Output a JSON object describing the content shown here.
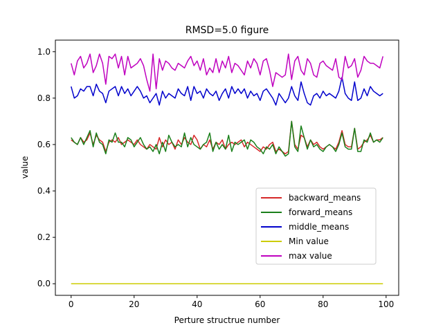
{
  "chart_data": {
    "type": "line",
    "title": "RMSD=5.0 figure",
    "xlabel": "Perture structrue number",
    "ylabel": "value",
    "xlim": [
      -5,
      104
    ],
    "ylim": [
      -0.05,
      1.05
    ],
    "xticks": [
      0,
      20,
      40,
      60,
      80,
      100
    ],
    "yticks": [
      0.0,
      0.2,
      0.4,
      0.6,
      0.8,
      1.0
    ],
    "xtick_labels": [
      "0",
      "20",
      "40",
      "60",
      "80",
      "100"
    ],
    "ytick_labels": [
      "0.0",
      "0.2",
      "0.4",
      "0.6",
      "0.8",
      "1.0"
    ],
    "grid": false,
    "legend_position": "lower-right",
    "x": [
      0,
      1,
      2,
      3,
      4,
      5,
      6,
      7,
      8,
      9,
      10,
      11,
      12,
      13,
      14,
      15,
      16,
      17,
      18,
      19,
      20,
      21,
      22,
      23,
      24,
      25,
      26,
      27,
      28,
      29,
      30,
      31,
      32,
      33,
      34,
      35,
      36,
      37,
      38,
      39,
      40,
      41,
      42,
      43,
      44,
      45,
      46,
      47,
      48,
      49,
      50,
      51,
      52,
      53,
      54,
      55,
      56,
      57,
      58,
      59,
      60,
      61,
      62,
      63,
      64,
      65,
      66,
      67,
      68,
      69,
      70,
      71,
      72,
      73,
      74,
      75,
      76,
      77,
      78,
      79,
      80,
      81,
      82,
      83,
      84,
      85,
      86,
      87,
      88,
      89,
      90,
      91,
      92,
      93,
      94,
      95,
      96,
      97,
      98,
      99
    ],
    "series": [
      {
        "name": "backward_means",
        "color": "#d62728",
        "values": [
          0.62,
          0.61,
          0.6,
          0.63,
          0.61,
          0.62,
          0.65,
          0.6,
          0.64,
          0.62,
          0.61,
          0.57,
          0.61,
          0.62,
          0.61,
          0.63,
          0.6,
          0.61,
          0.62,
          0.61,
          0.6,
          0.62,
          0.6,
          0.59,
          0.58,
          0.6,
          0.59,
          0.58,
          0.63,
          0.59,
          0.62,
          0.6,
          0.61,
          0.58,
          0.62,
          0.6,
          0.63,
          0.61,
          0.6,
          0.64,
          0.62,
          0.58,
          0.6,
          0.59,
          0.62,
          0.58,
          0.61,
          0.6,
          0.62,
          0.58,
          0.6,
          0.61,
          0.6,
          0.61,
          0.62,
          0.59,
          0.61,
          0.6,
          0.59,
          0.58,
          0.57,
          0.59,
          0.58,
          0.6,
          0.61,
          0.57,
          0.58,
          0.57,
          0.56,
          0.57,
          0.7,
          0.6,
          0.58,
          0.64,
          0.63,
          0.59,
          0.62,
          0.6,
          0.61,
          0.59,
          0.58,
          0.59,
          0.6,
          0.59,
          0.58,
          0.61,
          0.66,
          0.6,
          0.59,
          0.59,
          0.67,
          0.58,
          0.59,
          0.61,
          0.62,
          0.64,
          0.61,
          0.62,
          0.62,
          0.63
        ]
      },
      {
        "name": "forward_means",
        "color": "#1a7f1a",
        "values": [
          0.63,
          0.61,
          0.6,
          0.63,
          0.6,
          0.63,
          0.66,
          0.59,
          0.65,
          0.61,
          0.6,
          0.56,
          0.62,
          0.61,
          0.65,
          0.61,
          0.61,
          0.59,
          0.63,
          0.62,
          0.59,
          0.61,
          0.63,
          0.6,
          0.58,
          0.59,
          0.57,
          0.6,
          0.56,
          0.61,
          0.57,
          0.64,
          0.61,
          0.59,
          0.6,
          0.59,
          0.65,
          0.59,
          0.63,
          0.6,
          0.59,
          0.58,
          0.6,
          0.61,
          0.65,
          0.57,
          0.61,
          0.58,
          0.6,
          0.58,
          0.64,
          0.57,
          0.61,
          0.6,
          0.61,
          0.62,
          0.58,
          0.62,
          0.61,
          0.59,
          0.58,
          0.56,
          0.59,
          0.58,
          0.6,
          0.56,
          0.59,
          0.57,
          0.55,
          0.56,
          0.7,
          0.59,
          0.57,
          0.68,
          0.63,
          0.58,
          0.62,
          0.59,
          0.6,
          0.58,
          0.57,
          0.59,
          0.6,
          0.59,
          0.57,
          0.6,
          0.65,
          0.59,
          0.58,
          0.58,
          0.67,
          0.57,
          0.57,
          0.62,
          0.61,
          0.65,
          0.61,
          0.62,
          0.61,
          0.63
        ]
      },
      {
        "name": "middle_means",
        "color": "#0000cc",
        "values": [
          0.85,
          0.8,
          0.81,
          0.84,
          0.83,
          0.85,
          0.85,
          0.81,
          0.86,
          0.83,
          0.82,
          0.78,
          0.83,
          0.84,
          0.85,
          0.81,
          0.85,
          0.82,
          0.84,
          0.81,
          0.83,
          0.85,
          0.83,
          0.8,
          0.81,
          0.78,
          0.8,
          0.82,
          0.77,
          0.83,
          0.8,
          0.82,
          0.81,
          0.8,
          0.84,
          0.82,
          0.81,
          0.85,
          0.79,
          0.85,
          0.82,
          0.83,
          0.8,
          0.84,
          0.82,
          0.81,
          0.83,
          0.79,
          0.82,
          0.84,
          0.8,
          0.85,
          0.82,
          0.84,
          0.82,
          0.84,
          0.8,
          0.83,
          0.81,
          0.82,
          0.79,
          0.83,
          0.84,
          0.82,
          0.8,
          0.77,
          0.82,
          0.8,
          0.78,
          0.8,
          0.85,
          0.81,
          0.79,
          0.87,
          0.82,
          0.78,
          0.77,
          0.81,
          0.82,
          0.8,
          0.83,
          0.81,
          0.82,
          0.81,
          0.8,
          0.83,
          0.89,
          0.82,
          0.8,
          0.79,
          0.87,
          0.79,
          0.8,
          0.84,
          0.81,
          0.85,
          0.83,
          0.82,
          0.81,
          0.82
        ]
      },
      {
        "name": "Min value",
        "color": "#cccc00",
        "values": [
          0,
          0,
          0,
          0,
          0,
          0,
          0,
          0,
          0,
          0,
          0,
          0,
          0,
          0,
          0,
          0,
          0,
          0,
          0,
          0,
          0,
          0,
          0,
          0,
          0,
          0,
          0,
          0,
          0,
          0,
          0,
          0,
          0,
          0,
          0,
          0,
          0,
          0,
          0,
          0,
          0,
          0,
          0,
          0,
          0,
          0,
          0,
          0,
          0,
          0,
          0,
          0,
          0,
          0,
          0,
          0,
          0,
          0,
          0,
          0,
          0,
          0,
          0,
          0,
          0,
          0,
          0,
          0,
          0,
          0,
          0,
          0,
          0,
          0,
          0,
          0,
          0,
          0,
          0,
          0,
          0,
          0,
          0,
          0,
          0,
          0,
          0,
          0,
          0,
          0,
          0,
          0,
          0,
          0,
          0,
          0,
          0,
          0,
          0,
          0
        ]
      },
      {
        "name": "max value",
        "color": "#bf00bf",
        "values": [
          0.95,
          0.9,
          0.96,
          0.98,
          0.93,
          0.95,
          0.99,
          0.91,
          0.94,
          0.99,
          0.95,
          0.86,
          0.98,
          0.97,
          0.99,
          0.93,
          0.98,
          0.9,
          0.98,
          0.93,
          0.94,
          0.95,
          0.97,
          0.94,
          0.88,
          0.83,
          0.99,
          0.84,
          0.97,
          0.92,
          0.96,
          0.95,
          0.93,
          0.92,
          0.95,
          0.94,
          0.93,
          0.96,
          0.98,
          0.94,
          0.96,
          0.92,
          0.97,
          0.9,
          0.93,
          0.91,
          0.97,
          0.91,
          0.96,
          0.93,
          0.98,
          0.91,
          0.95,
          0.94,
          0.92,
          0.9,
          0.96,
          0.93,
          0.97,
          0.95,
          0.9,
          0.96,
          0.97,
          0.92,
          0.85,
          0.91,
          0.9,
          0.89,
          0.9,
          0.99,
          0.88,
          0.96,
          0.98,
          0.92,
          0.9,
          0.97,
          0.95,
          0.9,
          0.89,
          0.95,
          0.96,
          0.94,
          0.93,
          0.92,
          0.97,
          0.89,
          0.88,
          0.98,
          0.93,
          0.94,
          0.97,
          0.89,
          0.92,
          0.98,
          0.96,
          0.95,
          0.95,
          0.94,
          0.93,
          0.98
        ]
      }
    ]
  }
}
